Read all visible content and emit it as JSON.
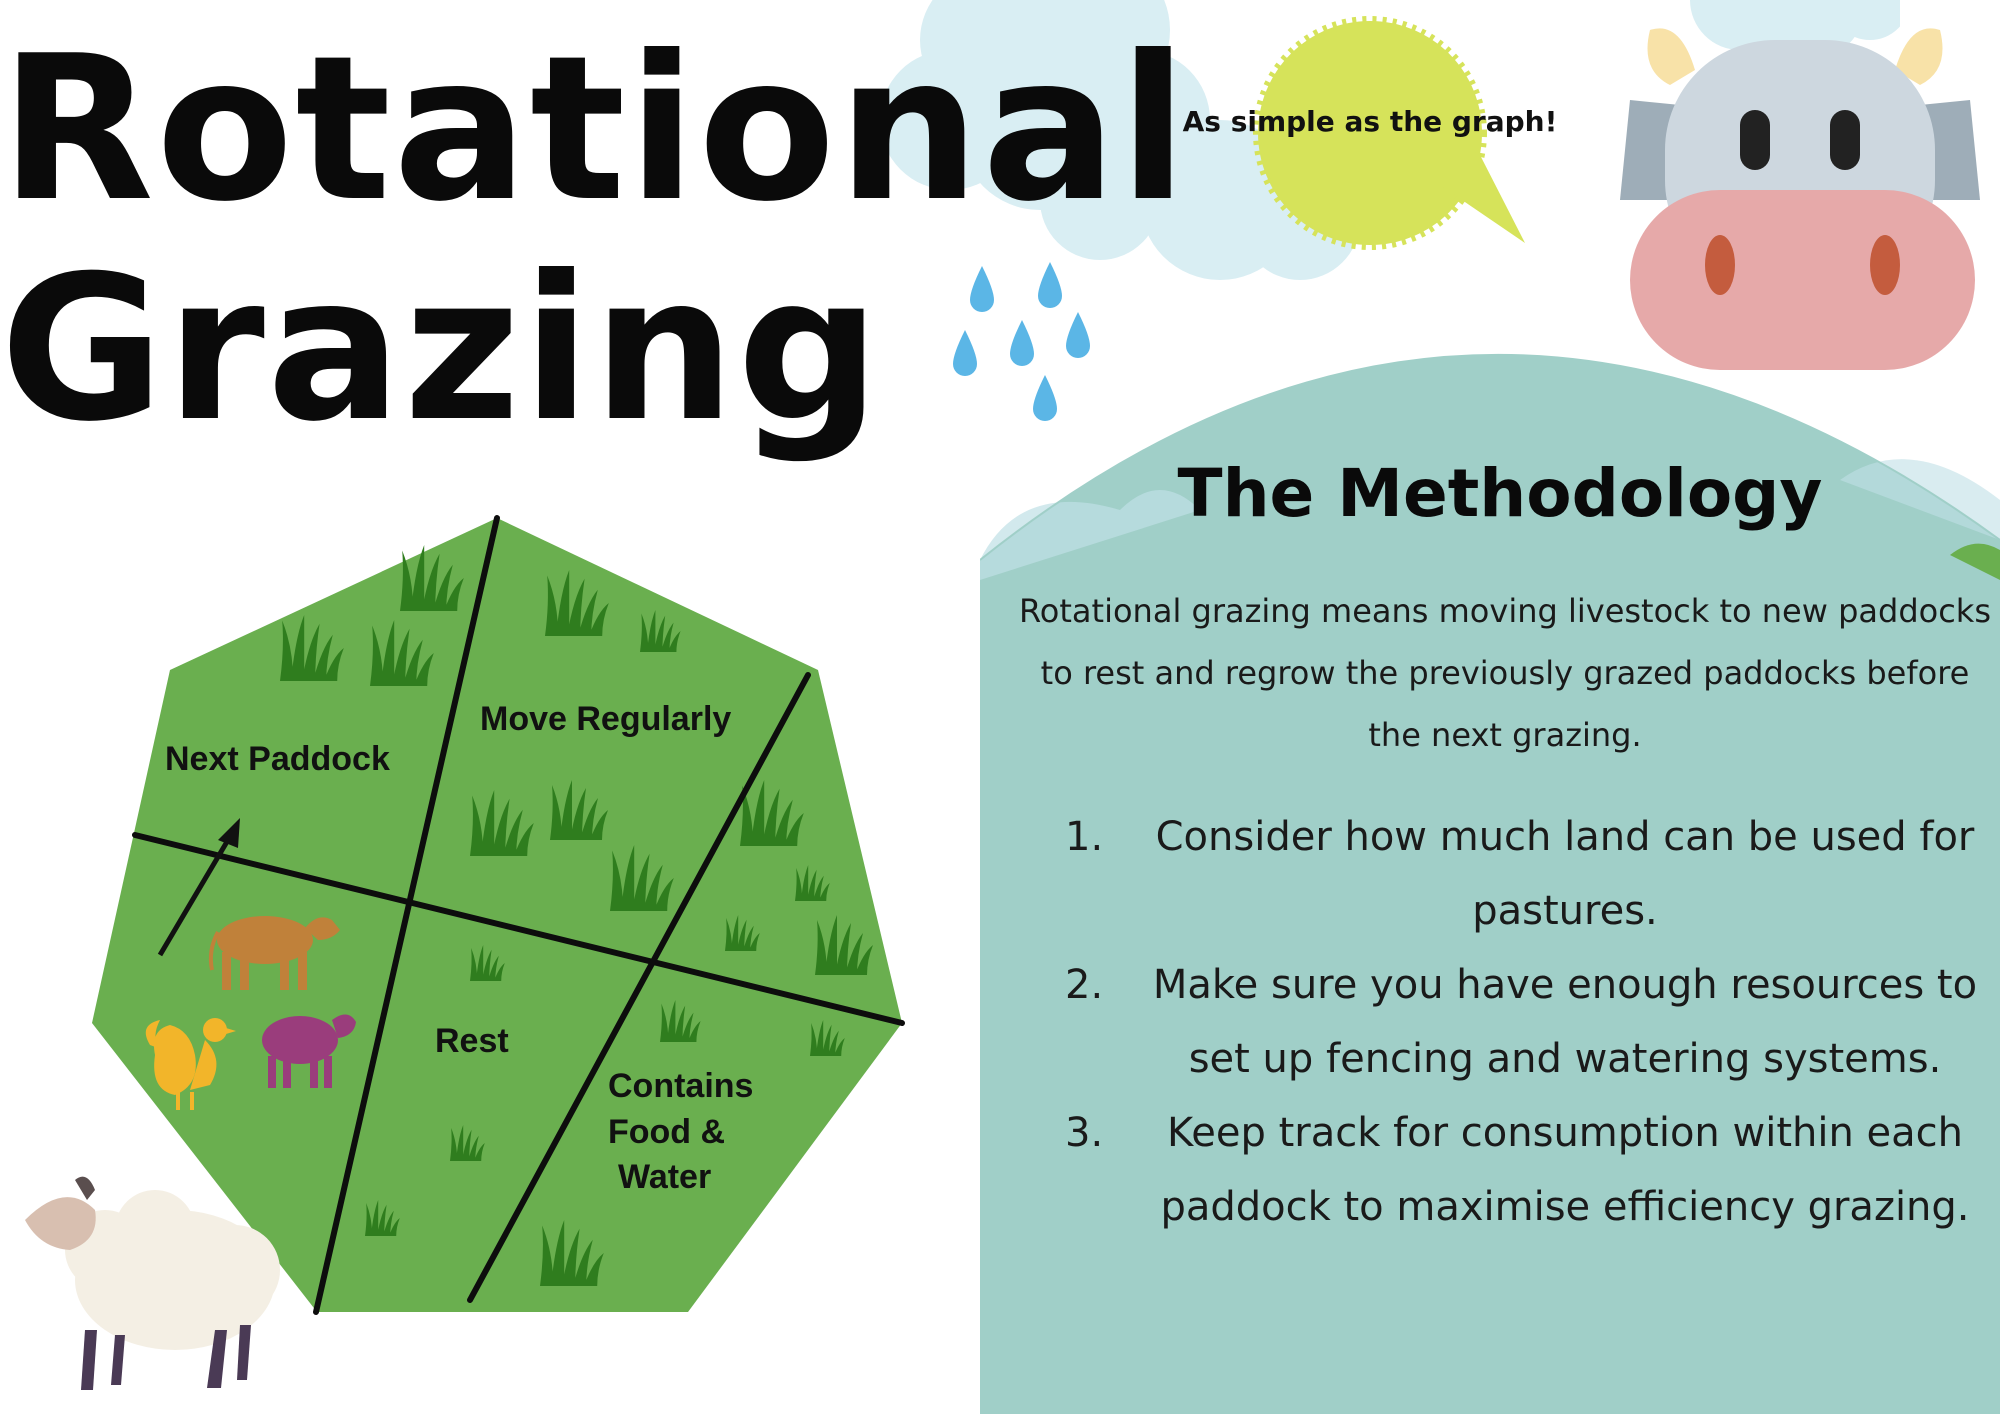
{
  "title": {
    "line1": "Rotational",
    "line2": "Grazing"
  },
  "speech_bubble": {
    "text": "As simple as the graph!",
    "color": "#d6e35a"
  },
  "methodology": {
    "heading": "The Methodology",
    "intro": "Rotational grazing means moving livestock to new paddocks to rest and regrow the previously grazed paddocks before the next grazing.",
    "steps": [
      {
        "number": "1.",
        "text": "Consider how much land can be used for pastures."
      },
      {
        "number": "2.",
        "text": "Make sure you have enough resources to set up fencing and watering systems."
      },
      {
        "number": "3.",
        "text": "Keep track for consumption within each paddock to maximise efficiency grazing."
      }
    ]
  },
  "diagram": {
    "zones": {
      "next_paddock": "Next Paddock",
      "move_regularly": "Move Regularly",
      "rest": "Rest",
      "contains_line1": "Contains",
      "contains_line2": "Food &",
      "contains_line3": "Water"
    },
    "colors": {
      "pasture": "#6aaf4f",
      "grass": "#2f7d1e",
      "cow": "#c0813a",
      "chicken": "#f2b52a",
      "sheep_small": "#9a3d7c"
    }
  },
  "colors": {
    "panel": "#a0cfc8",
    "cloud": "#d9eef3",
    "raindrop": "#5bb6e6",
    "cow_head": "#cdd7df",
    "cow_snout": "#e6a9a9"
  },
  "icons": [
    "cloud-icon",
    "raindrop-icon",
    "cow-face-icon",
    "sheep-icon",
    "cow-silhouette-icon",
    "chicken-icon",
    "sheep-silhouette-icon",
    "grass-tuft-icon",
    "arrow-icon"
  ]
}
